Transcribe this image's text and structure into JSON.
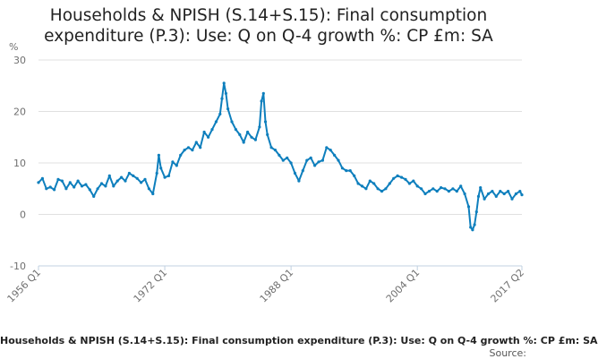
{
  "chart_data": {
    "type": "line",
    "title_line1": "Households & NPISH (S.14+S.15): Final consumption",
    "title_line2": "expenditure (P.3): Use: Q on Q-4 growth %: CP £m: SA",
    "ylabel": "%",
    "ylim": [
      -10,
      30
    ],
    "y_ticks": [
      "30",
      "20",
      "10",
      "0",
      "-10"
    ],
    "y_tick_values": [
      30,
      20,
      10,
      0,
      -10
    ],
    "x_range": [
      1956.0,
      2017.25
    ],
    "x_ticks": [
      "1956 Q1",
      "1972 Q1",
      "1988 Q1",
      "2004 Q1",
      "2017 Q2"
    ],
    "x_tick_values": [
      1956.0,
      1972.0,
      1988.0,
      2004.0,
      2017.25
    ],
    "grid": true,
    "legend": "bottom",
    "series": [
      {
        "name": "Households & NPISH (S.14+S.15): Final consumption expenditure (P.3): Use: Q on Q-4 growth %: CP £m: SA",
        "color": "#0e7fbd",
        "points": [
          [
            1956.0,
            6.2
          ],
          [
            1956.5,
            7.0
          ],
          [
            1957.0,
            5.0
          ],
          [
            1957.5,
            5.3
          ],
          [
            1958.0,
            4.8
          ],
          [
            1958.5,
            6.8
          ],
          [
            1959.0,
            6.5
          ],
          [
            1959.5,
            5.0
          ],
          [
            1960.0,
            6.2
          ],
          [
            1960.5,
            5.3
          ],
          [
            1961.0,
            6.5
          ],
          [
            1961.5,
            5.5
          ],
          [
            1962.0,
            5.8
          ],
          [
            1962.5,
            4.8
          ],
          [
            1963.0,
            3.5
          ],
          [
            1963.5,
            5.0
          ],
          [
            1964.0,
            6.0
          ],
          [
            1964.5,
            5.5
          ],
          [
            1965.0,
            7.5
          ],
          [
            1965.5,
            5.5
          ],
          [
            1966.0,
            6.5
          ],
          [
            1966.5,
            7.2
          ],
          [
            1967.0,
            6.5
          ],
          [
            1967.5,
            8.0
          ],
          [
            1968.0,
            7.5
          ],
          [
            1968.5,
            7.0
          ],
          [
            1969.0,
            6.2
          ],
          [
            1969.5,
            6.8
          ],
          [
            1970.0,
            5.0
          ],
          [
            1970.5,
            4.0
          ],
          [
            1971.0,
            8.0
          ],
          [
            1971.25,
            11.5
          ],
          [
            1971.5,
            9.0
          ],
          [
            1972.0,
            7.2
          ],
          [
            1972.5,
            7.5
          ],
          [
            1973.0,
            10.2
          ],
          [
            1973.5,
            9.5
          ],
          [
            1974.0,
            11.5
          ],
          [
            1974.5,
            12.5
          ],
          [
            1975.0,
            13.0
          ],
          [
            1975.5,
            12.5
          ],
          [
            1976.0,
            14.0
          ],
          [
            1976.5,
            13.0
          ],
          [
            1977.0,
            16.0
          ],
          [
            1977.5,
            15.0
          ],
          [
            1978.0,
            16.5
          ],
          [
            1978.5,
            18.0
          ],
          [
            1979.0,
            19.5
          ],
          [
            1979.25,
            22.5
          ],
          [
            1979.5,
            25.5
          ],
          [
            1979.75,
            23.5
          ],
          [
            1980.0,
            20.5
          ],
          [
            1980.5,
            18.0
          ],
          [
            1981.0,
            16.5
          ],
          [
            1981.5,
            15.5
          ],
          [
            1982.0,
            14.0
          ],
          [
            1982.5,
            16.0
          ],
          [
            1983.0,
            15.0
          ],
          [
            1983.5,
            14.5
          ],
          [
            1984.0,
            17.0
          ],
          [
            1984.25,
            22.0
          ],
          [
            1984.5,
            23.5
          ],
          [
            1984.75,
            18.0
          ],
          [
            1985.0,
            15.5
          ],
          [
            1985.5,
            13.0
          ],
          [
            1986.0,
            12.5
          ],
          [
            1986.5,
            11.5
          ],
          [
            1987.0,
            10.5
          ],
          [
            1987.5,
            11.0
          ],
          [
            1988.0,
            10.0
          ],
          [
            1988.5,
            8.0
          ],
          [
            1989.0,
            6.5
          ],
          [
            1989.5,
            8.5
          ],
          [
            1990.0,
            10.5
          ],
          [
            1990.5,
            11.0
          ],
          [
            1991.0,
            9.5
          ],
          [
            1991.5,
            10.2
          ],
          [
            1992.0,
            10.5
          ],
          [
            1992.5,
            13.0
          ],
          [
            1993.0,
            12.5
          ],
          [
            1993.5,
            11.5
          ],
          [
            1994.0,
            10.5
          ],
          [
            1994.5,
            9.0
          ],
          [
            1995.0,
            8.5
          ],
          [
            1995.5,
            8.5
          ],
          [
            1996.0,
            7.5
          ],
          [
            1996.5,
            6.0
          ],
          [
            1997.0,
            5.5
          ],
          [
            1997.5,
            5.0
          ],
          [
            1998.0,
            6.5
          ],
          [
            1998.5,
            6.0
          ],
          [
            1999.0,
            5.0
          ],
          [
            1999.5,
            4.5
          ],
          [
            2000.0,
            5.0
          ],
          [
            2000.5,
            6.0
          ],
          [
            2001.0,
            7.0
          ],
          [
            2001.5,
            7.5
          ],
          [
            2002.0,
            7.2
          ],
          [
            2002.5,
            6.8
          ],
          [
            2003.0,
            6.0
          ],
          [
            2003.5,
            6.5
          ],
          [
            2004.0,
            5.5
          ],
          [
            2004.5,
            5.0
          ],
          [
            2005.0,
            4.0
          ],
          [
            2005.5,
            4.5
          ],
          [
            2006.0,
            5.0
          ],
          [
            2006.5,
            4.5
          ],
          [
            2007.0,
            5.2
          ],
          [
            2007.5,
            5.0
          ],
          [
            2008.0,
            4.5
          ],
          [
            2008.5,
            5.0
          ],
          [
            2009.0,
            4.5
          ],
          [
            2009.5,
            5.5
          ],
          [
            2010.0,
            4.0
          ],
          [
            2010.5,
            1.5
          ],
          [
            2010.75,
            -2.5
          ],
          [
            2011.0,
            -3.0
          ],
          [
            2011.25,
            -2.0
          ],
          [
            2011.5,
            0.5
          ],
          [
            2011.75,
            3.5
          ],
          [
            2012.0,
            5.2
          ],
          [
            2012.5,
            3.0
          ],
          [
            2013.0,
            4.0
          ],
          [
            2013.5,
            4.5
          ],
          [
            2014.0,
            3.5
          ],
          [
            2014.5,
            4.5
          ],
          [
            2015.0,
            4.0
          ],
          [
            2015.5,
            4.5
          ],
          [
            2016.0,
            3.0
          ],
          [
            2016.5,
            4.0
          ],
          [
            2017.0,
            4.5
          ],
          [
            2017.25,
            3.8
          ]
        ]
      }
    ]
  },
  "footer": {
    "series_name": "Households & NPISH (S.14+S.15): Final consumption expenditure (P.3): Use: Q on Q-4 growth %: CP £m: SA",
    "source": "Source:"
  }
}
